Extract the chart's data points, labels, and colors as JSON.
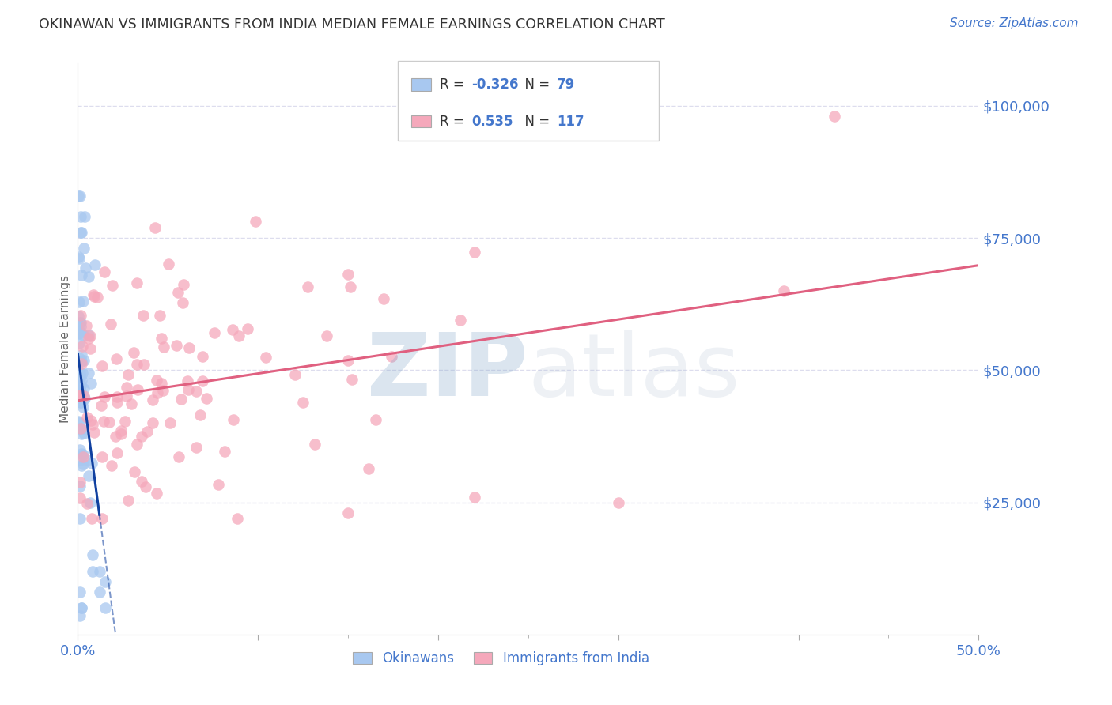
{
  "title": "OKINAWAN VS IMMIGRANTS FROM INDIA MEDIAN FEMALE EARNINGS CORRELATION CHART",
  "source": "Source: ZipAtlas.com",
  "ylabel": "Median Female Earnings",
  "y_ticks": [
    25000,
    50000,
    75000,
    100000
  ],
  "y_tick_labels": [
    "$25,000",
    "$50,000",
    "$75,000",
    "$100,000"
  ],
  "xlim": [
    0.0,
    0.5
  ],
  "ylim": [
    0,
    108000
  ],
  "legend_labels": [
    "Okinawans",
    "Immigrants from India"
  ],
  "R_okinawan": -0.326,
  "N_okinawan": 79,
  "R_india": 0.535,
  "N_india": 117,
  "blue_scatter_color": "#A8C8F0",
  "pink_scatter_color": "#F5A8BB",
  "blue_line_color": "#1040A0",
  "pink_line_color": "#E06080",
  "axis_color": "#4477CC",
  "background_color": "#FFFFFF",
  "grid_color": "#DDDDEE"
}
